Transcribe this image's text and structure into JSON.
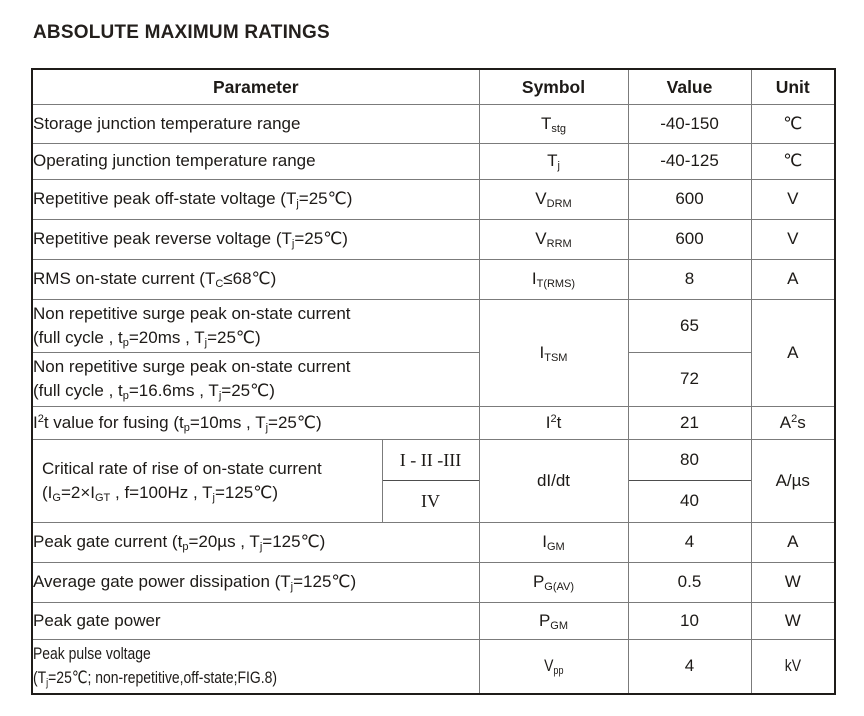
{
  "page": {
    "title": "ABSOLUTE MAXIMUM RATINGS"
  },
  "table": {
    "headers": {
      "parameter": "Parameter",
      "symbol": "Symbol",
      "value": "Value",
      "unit": "Unit"
    },
    "rows": [
      {
        "param": "Storage junction temperature range",
        "symbol": "T~stg~",
        "value": "-40-150",
        "unit": "℃"
      },
      {
        "param": "Operating junction temperature range",
        "symbol": "T~j~",
        "value": "-40-125",
        "unit": "℃"
      },
      {
        "param": "Repetitive peak off-state voltage (T~j~=25℃)",
        "symbol": "V~DRM~",
        "value": "600",
        "unit": "V"
      },
      {
        "param": "Repetitive peak reverse voltage (T~j~=25℃)",
        "symbol": "V~RRM~",
        "value": "600",
        "unit": "V"
      },
      {
        "param": "RMS on-state current (T~C~≤68℃)",
        "symbol": "I~T(RMS)~",
        "value": "8",
        "unit": "A"
      },
      {
        "param": "Non repetitive surge peak on-state current\n(full cycle , t~p~=20ms , T~j~=25℃)",
        "symbol": "I~TSM~",
        "value": "65",
        "unit": "A"
      },
      {
        "param": "Non repetitive surge peak on-state current\n(full cycle , t~p~=16.6ms , T~j~=25℃)",
        "value": "72"
      },
      {
        "param": "I^2^t value for fusing (t~p~=10ms , T~j~=25℃)",
        "symbol": "I^2^t",
        "value": "21",
        "unit": "A^2^s"
      },
      {
        "param": "Critical rate of rise of on-state current\n(I~G~=2×I~GT~ , f=100Hz , T~j~=125℃)",
        "class_top": "I - II -III",
        "class_bottom": "IV",
        "symbol": "dI/dt",
        "value_top": "80",
        "value_bottom": "40",
        "unit": "A/µs"
      },
      {
        "param": "Peak gate current (t~p~=20µs , T~j~=125℃)",
        "symbol": "I~GM~",
        "value": "4",
        "unit": "A"
      },
      {
        "param": "Average gate power dissipation (T~j~=125℃)",
        "symbol": "P~G(AV)~",
        "value": "0.5",
        "unit": "W"
      },
      {
        "param": "Peak gate power",
        "symbol": "P~GM~",
        "value": "10",
        "unit": "W"
      },
      {
        "param": "Peak pulse voltage\n(T~j~=25℃; non-repetitive,off-state;FIG.8)",
        "symbol": "V~pp~",
        "value": "4",
        "unit": "kV"
      }
    ],
    "colors": {
      "outer_border": "#1f1c19",
      "grid_line": "#7b7b7b",
      "text": "#1d1a17",
      "background": "#ffffff"
    }
  }
}
